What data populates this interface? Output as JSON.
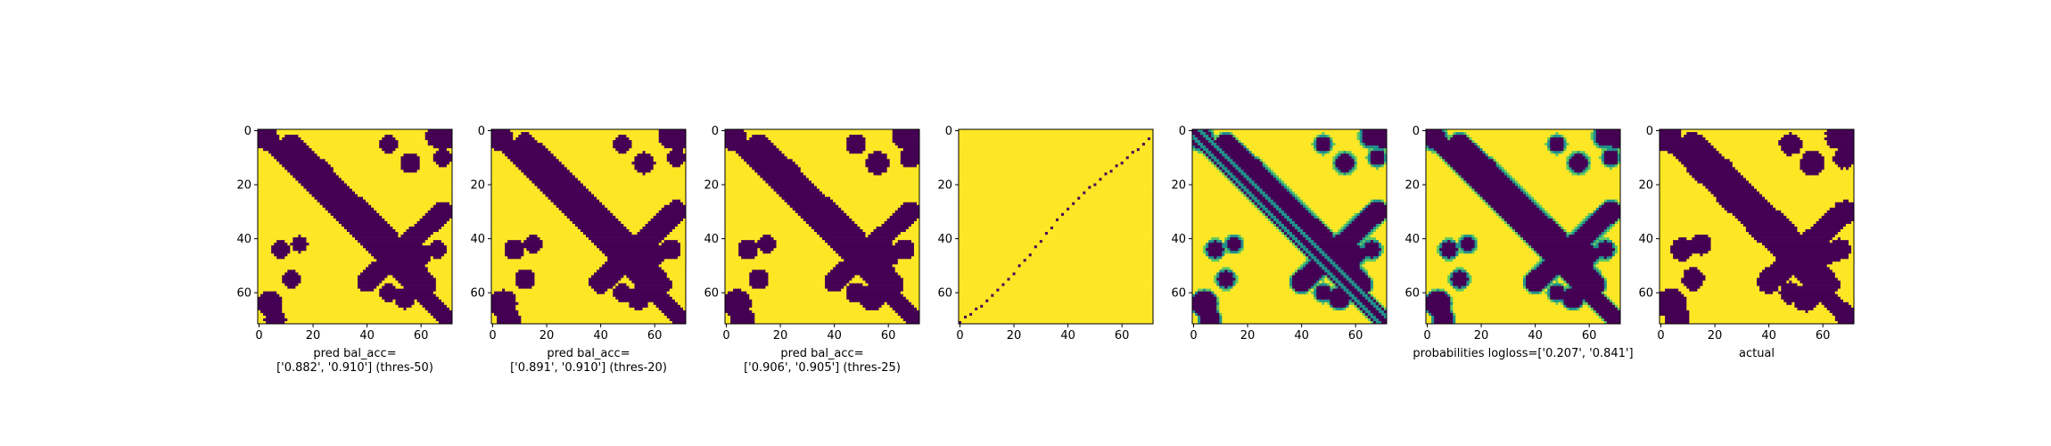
{
  "figure": {
    "background": "#ffffff"
  },
  "colors": {
    "low": "#440154",
    "mid": "#21918c",
    "high": "#fde725",
    "axis": "#000000"
  },
  "chart_data": [
    {
      "type": "heatmap",
      "title": "",
      "xlabel": "pred bal_acc=\n['0.882', '0.910'] (thres-50)",
      "ylabel": "",
      "xlim": [
        0,
        72
      ],
      "ylim": [
        72,
        0
      ],
      "xticks": [
        "0",
        "20",
        "40",
        "60"
      ],
      "yticks": [
        "0",
        "20",
        "40",
        "60"
      ],
      "pattern": "binary-prediction"
    },
    {
      "type": "heatmap",
      "title": "",
      "xlabel": "pred bal_acc=\n['0.891', '0.910'] (thres-20)",
      "ylabel": "",
      "xlim": [
        0,
        72
      ],
      "ylim": [
        72,
        0
      ],
      "xticks": [
        "0",
        "20",
        "40",
        "60"
      ],
      "yticks": [
        "0",
        "20",
        "40",
        "60"
      ],
      "pattern": "binary-prediction"
    },
    {
      "type": "heatmap",
      "title": "",
      "xlabel": "pred bal_acc=\n['0.906', '0.905'] (thres-25)",
      "ylabel": "",
      "xlim": [
        0,
        72
      ],
      "ylim": [
        72,
        0
      ],
      "xticks": [
        "0",
        "20",
        "40",
        "60"
      ],
      "yticks": [
        "0",
        "20",
        "40",
        "60"
      ],
      "pattern": "binary-prediction"
    },
    {
      "type": "heatmap",
      "title": "",
      "xlabel": "",
      "ylabel": "",
      "xlim": [
        0,
        72
      ],
      "ylim": [
        72,
        0
      ],
      "xticks": [
        "0",
        "20",
        "40",
        "60"
      ],
      "yticks": [
        "0",
        "20",
        "40",
        "60"
      ],
      "pattern": "anti-diagonal-dots"
    },
    {
      "type": "heatmap",
      "title": "",
      "xlabel": "",
      "ylabel": "",
      "xlim": [
        0,
        72
      ],
      "ylim": [
        72,
        0
      ],
      "xticks": [
        "0",
        "20",
        "40",
        "60"
      ],
      "yticks": [
        "0",
        "20",
        "40",
        "60"
      ],
      "pattern": "probability-map-diagonal"
    },
    {
      "type": "heatmap",
      "title": "",
      "xlabel": "probabilities logloss=['0.207', '0.841']",
      "ylabel": "",
      "xlim": [
        0,
        72
      ],
      "ylim": [
        72,
        0
      ],
      "xticks": [
        "0",
        "20",
        "40",
        "60"
      ],
      "yticks": [
        "0",
        "20",
        "40",
        "60"
      ],
      "pattern": "probability-map"
    },
    {
      "type": "heatmap",
      "title": "",
      "xlabel": "actual",
      "ylabel": "",
      "xlim": [
        0,
        72
      ],
      "ylim": [
        72,
        0
      ],
      "xticks": [
        "0",
        "20",
        "40",
        "60"
      ],
      "yticks": [
        "0",
        "20",
        "40",
        "60"
      ],
      "pattern": "binary-actual"
    }
  ]
}
